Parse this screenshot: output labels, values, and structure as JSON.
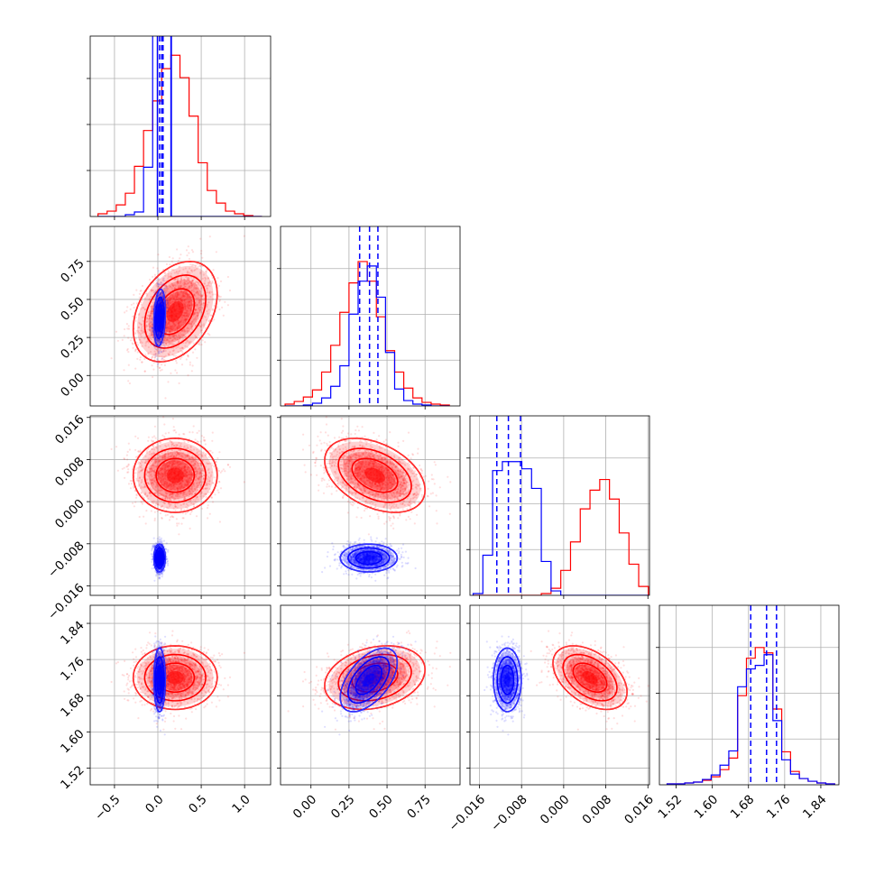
{
  "colors": {
    "red": "#ff0000",
    "blue": "#0000ff",
    "grid": "#b0b0b0",
    "frame": "#000000"
  },
  "chart_data": {
    "type": "corner",
    "parameters": [
      {
        "range": [
          -0.78,
          1.3
        ],
        "ticks": [
          -0.5,
          0.0,
          0.5,
          1.0
        ],
        "tick_labels": [
          "−0.5",
          "0.0",
          "0.5",
          "1.0"
        ]
      },
      {
        "range": [
          -0.2,
          0.98
        ],
        "ticks": [
          0.0,
          0.25,
          0.5,
          0.75
        ],
        "tick_labels": [
          "0.00",
          "0.25",
          "0.50",
          "0.75"
        ]
      },
      {
        "range": [
          -0.0178,
          0.0163
        ],
        "ticks": [
          -0.016,
          -0.008,
          0.0,
          0.008,
          0.016
        ],
        "tick_labels": [
          "−0.016",
          "−0.008",
          "0.000",
          "0.008",
          "0.016"
        ]
      },
      {
        "range": [
          1.483,
          1.88
        ],
        "ticks": [
          1.52,
          1.6,
          1.68,
          1.76,
          1.84
        ],
        "tick_labels": [
          "1.52",
          "1.60",
          "1.68",
          "1.76",
          "1.84"
        ]
      }
    ],
    "series": [
      {
        "color": "red",
        "mean": [
          0.2,
          0.42,
          0.005,
          1.72
        ],
        "std": [
          0.22,
          0.15,
          0.0032,
          0.032
        ],
        "corr": [
          [
            1,
            0.35,
            0,
            0
          ],
          [
            0.35,
            1,
            -0.4,
            0.25
          ],
          [
            0,
            -0.4,
            1,
            -0.45
          ],
          [
            0,
            0.25,
            -0.45,
            1
          ]
        ]
      },
      {
        "color": "blue",
        "mean": [
          0.02,
          0.38,
          -0.0107,
          1.715
        ],
        "std": [
          0.03,
          0.085,
          0.0012,
          0.032
        ],
        "corr": [
          [
            1,
            0.2,
            0,
            0
          ],
          [
            0.2,
            1,
            0,
            0.55
          ],
          [
            0,
            0,
            1,
            0
          ],
          [
            0,
            0.55,
            0,
            1
          ]
        ]
      }
    ],
    "histograms": [
      {
        "bins": [
          -0.69,
          -0.585,
          -0.48,
          -0.375,
          -0.27,
          -0.165,
          -0.06,
          0.045,
          0.15,
          0.255,
          0.36,
          0.465,
          0.57,
          0.675,
          0.78,
          0.885,
          0.99,
          1.095,
          1.2
        ],
        "red": [
          3,
          6,
          13,
          26,
          56,
          96,
          129,
          165,
          180,
          155,
          112,
          60,
          29,
          15,
          6,
          3,
          1,
          0
        ],
        "blue": [
          0,
          0,
          0,
          2,
          5,
          55,
          1080,
          1180,
          0,
          0,
          0,
          0,
          0,
          0,
          0,
          0,
          0,
          0
        ],
        "blue_visible_max": 190
      },
      {
        "bins": [
          -0.17,
          -0.11,
          -0.05,
          0.01,
          0.07,
          0.13,
          0.19,
          0.25,
          0.31,
          0.37,
          0.43,
          0.49,
          0.55,
          0.61,
          0.67,
          0.73,
          0.79,
          0.85,
          0.91
        ],
        "red": [
          2,
          5,
          10,
          18,
          38,
          68,
          105,
          138,
          162,
          140,
          100,
          62,
          38,
          20,
          9,
          4,
          2,
          1
        ],
        "blue": [
          0,
          0,
          1,
          3,
          9,
          22,
          45,
          103,
          140,
          157,
          122,
          60,
          19,
          6,
          2,
          1,
          0,
          0
        ],
        "blue_visible_max": 190
      },
      {
        "bins": [
          -0.0172,
          -0.01535,
          -0.0135,
          -0.01165,
          -0.0098,
          -0.00795,
          -0.0061,
          -0.00425,
          -0.0024,
          -0.00055,
          0.0013,
          0.00315,
          0.005,
          0.00685,
          0.0087,
          0.01055,
          0.0124,
          0.01425,
          0.0161
        ],
        "red": [
          0,
          0,
          0,
          0,
          0,
          0,
          0,
          2,
          8,
          28,
          60,
          97,
          118,
          130,
          108,
          70,
          35,
          10
        ],
        "blue": [
          2,
          45,
          140,
          150,
          150,
          142,
          120,
          38,
          5,
          0,
          0,
          0,
          0,
          0,
          0,
          0,
          0,
          0
        ],
        "blue_visible_max": 190
      },
      {
        "bins": [
          1.5,
          1.5195,
          1.539,
          1.5585,
          1.578,
          1.5975,
          1.617,
          1.6365,
          1.656,
          1.6755,
          1.695,
          1.7145,
          1.734,
          1.7535,
          1.773,
          1.7925,
          1.812,
          1.8315,
          1.851,
          1.8705
        ],
        "red": [
          1,
          1,
          2,
          3,
          5,
          9,
          17,
          30,
          100,
          142,
          154,
          148,
          85,
          37,
          15,
          7,
          4,
          2,
          1
        ],
        "blue": [
          1,
          1,
          2,
          3,
          6,
          11,
          22,
          38,
          110,
          130,
          134,
          146,
          72,
          28,
          12,
          7,
          4,
          2,
          1
        ],
        "blue_visible_max": 190
      }
    ],
    "quantile_lines": {
      "color": "blue",
      "values": [
        [
          -0.005,
          0.02,
          0.045,
          0.06,
          0.155
        ],
        [
          0.32,
          0.385,
          0.44
        ],
        [
          -0.0127,
          -0.0105,
          -0.0082
        ],
        [
          1.685,
          1.72,
          1.742
        ]
      ]
    },
    "grid": true
  }
}
